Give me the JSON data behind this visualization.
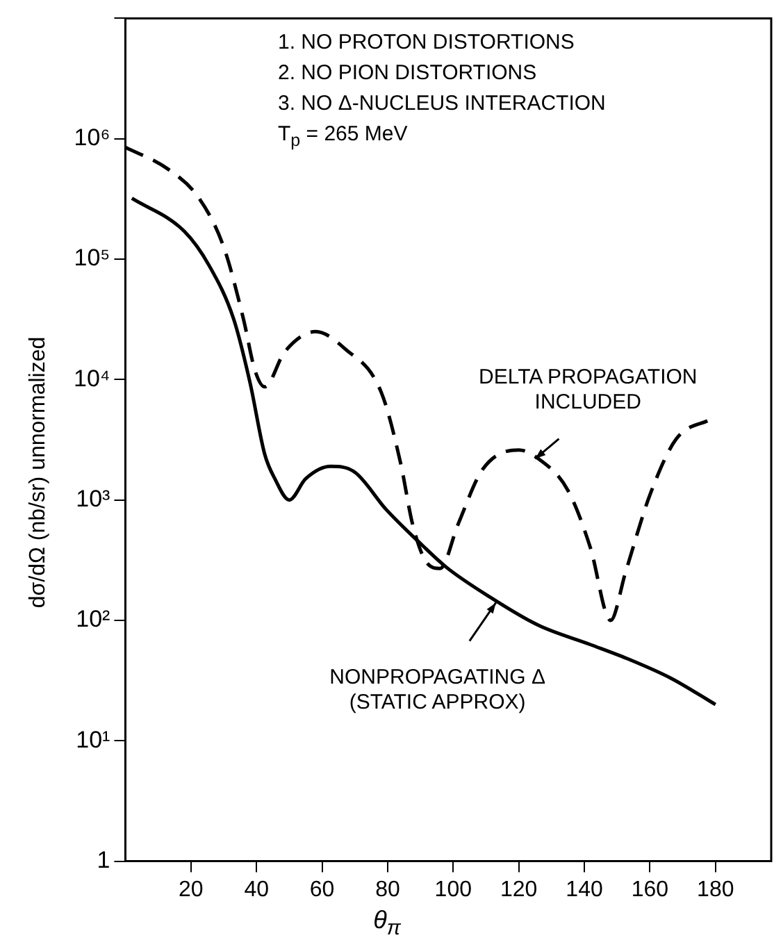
{
  "chart_data": {
    "type": "line",
    "xlabel": "θ$_{π}$",
    "ylabel": "dσ/dΩ (nb/sr) unnormalized",
    "xlim": [
      0,
      197
    ],
    "xticks": [
      20,
      40,
      60,
      80,
      100,
      120,
      140,
      160,
      180
    ],
    "ylim": [
      1,
      10000000
    ],
    "yticks": [
      1,
      {
        "value": 10,
        "label": "10¹"
      },
      {
        "value": 100,
        "label": "10²"
      },
      {
        "value": 1000,
        "label": "10³"
      },
      {
        "value": 10000,
        "label": "10⁴"
      },
      {
        "value": 100000,
        "label": "10⁵"
      },
      {
        "value": 1000000,
        "label": "10⁶"
      },
      {
        "value": 10000000,
        "label": null
      }
    ],
    "log": "y",
    "grid": false,
    "legend": false,
    "marker": "none",
    "series": [
      {
        "color": "#000000",
        "line_style": "solid",
        "x": [
          2,
          18,
          25.6,
          33,
          38,
          42.5,
          45.6,
          50,
          55,
          62.6,
          70,
          79.6,
          90.6,
          98,
          110.6,
          126,
          141.8,
          154,
          166.5,
          180
        ],
        "values": [
          320000,
          170000,
          88000,
          32000,
          9500,
          2400,
          1500,
          1000,
          1500,
          1900,
          1700,
          830,
          420,
          275,
          160,
          91,
          63,
          47,
          33,
          20
        ]
      },
      {
        "color": "#000000",
        "line_style": "dashed",
        "x": [
          0,
          13,
          22.5,
          30,
          36,
          39.5,
          42.5,
          48.6,
          58,
          67,
          78,
          84,
          87.6,
          92,
          96,
          101.5,
          109,
          120,
          126,
          135,
          141.8,
          148,
          152.6,
          160,
          168,
          178.7
        ],
        "values": [
          850000,
          560000,
          320000,
          126000,
          32000,
          12000,
          8700,
          17000,
          25000,
          18000,
          7900,
          2000,
          630,
          300,
          270,
          630,
          1800,
          2600,
          2200,
          1200,
          405,
          100,
          253,
          1100,
          3200,
          4700
        ]
      }
    ],
    "annotations": [
      "1. NO PROTON DISTORTIONS",
      "2. NO PION DISTORTIONS",
      "3. NO Δ-NUCLEUS INTERACTION",
      "T$_{p}$ = 265 MeV",
      {
        "text": "DELTA PROPAGATION\nINCLUDED",
        "x": 125,
        "y": 2200
      },
      {
        "text": "NONPROPAGATING Δ\n(STATIC APPROX)",
        "x": 113,
        "y": 140
      }
    ]
  }
}
